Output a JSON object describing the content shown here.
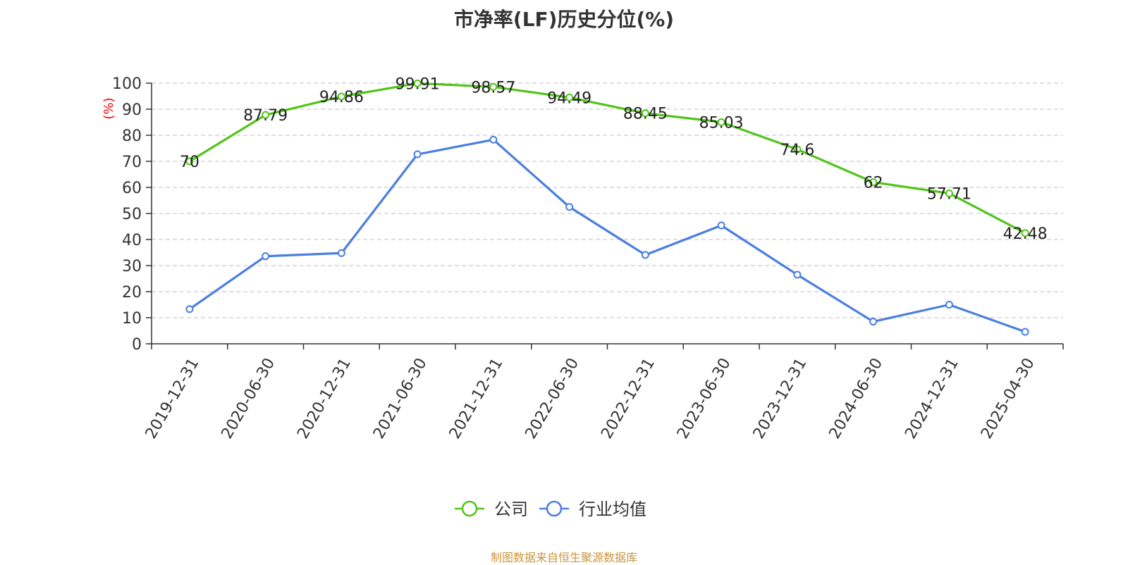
{
  "chart_data": {
    "type": "line",
    "title": "市净率(LF)历史分位(%)",
    "ylabel": "(%)",
    "categories": [
      "2019-12-31",
      "2020-06-30",
      "2020-12-31",
      "2021-06-30",
      "2021-12-31",
      "2022-06-30",
      "2022-12-31",
      "2023-06-30",
      "2023-12-31",
      "2024-06-30",
      "2024-12-31",
      "2025-04-30"
    ],
    "yticks": [
      0,
      10,
      20,
      30,
      40,
      50,
      60,
      70,
      80,
      90,
      100
    ],
    "ylim": [
      0,
      100
    ],
    "grid": true,
    "legend_position": "bottom-center",
    "series": [
      {
        "name": "公司",
        "color": "#52c41a",
        "show_labels": true,
        "values": [
          70,
          87.79,
          94.86,
          99.91,
          98.57,
          94.49,
          88.45,
          85.03,
          74.6,
          62,
          57.71,
          42.48
        ]
      },
      {
        "name": "行业均值",
        "color": "#4a7fe0",
        "show_labels": false,
        "values": [
          13.3,
          33.6,
          34.8,
          72.7,
          78.3,
          52.5,
          34.1,
          45.4,
          26.5,
          8.5,
          15.0,
          4.6
        ]
      }
    ]
  },
  "source_text": "制图数据来自恒生聚源数据库",
  "colors": {
    "ylabel": "#ff0000",
    "source": "#c8963e",
    "axis": "#333333",
    "grid": "#cccccc",
    "text": "#333333"
  }
}
